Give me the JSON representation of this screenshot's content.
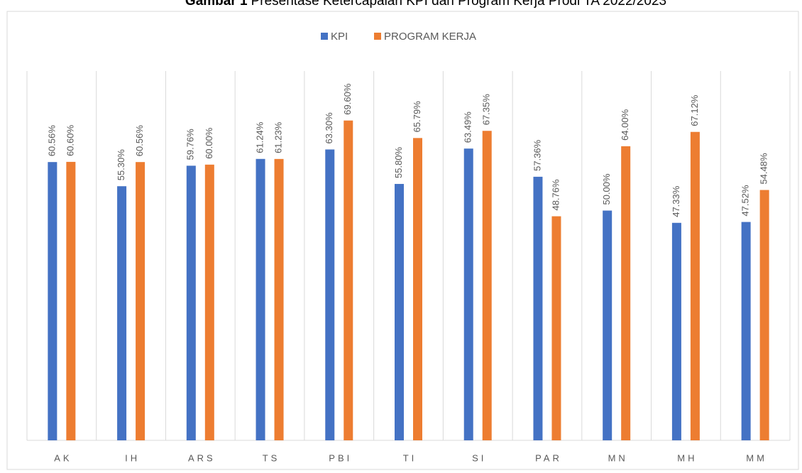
{
  "chart_data": {
    "type": "bar",
    "title_label": "Gambar 1",
    "title": "Presentase Ketercapaian KPI dan Program Kerja Prodi TA 2022/2023",
    "categories": [
      "AK",
      "IH",
      "ARS",
      "TS",
      "PBI",
      "TI",
      "SI",
      "PAR",
      "MN",
      "MH",
      "MM"
    ],
    "series": [
      {
        "name": "KPI",
        "color": "#4472c4",
        "values": [
          60.56,
          55.3,
          59.76,
          61.24,
          63.3,
          55.8,
          63.49,
          57.36,
          50.0,
          47.33,
          47.52
        ],
        "value_labels": [
          "60.56%",
          "55.30%",
          "59.76%",
          "61.24%",
          "63.30%",
          "55.80%",
          "63.49%",
          "57.36%",
          "50.00%",
          "47.33%",
          "47.52%"
        ]
      },
      {
        "name": "PROGRAM KERJA",
        "color": "#ed7d31",
        "values": [
          60.6,
          60.56,
          60.0,
          61.23,
          69.6,
          65.79,
          67.35,
          48.76,
          64.0,
          67.12,
          54.48
        ],
        "value_labels": [
          "60.60%",
          "60.56%",
          "60.00%",
          "61.23%",
          "69.60%",
          "65.79%",
          "67.35%",
          "48.76%",
          "64.00%",
          "67.12%",
          "54.48%"
        ]
      }
    ],
    "ylim": [
      0,
      100
    ],
    "legend": "top"
  }
}
